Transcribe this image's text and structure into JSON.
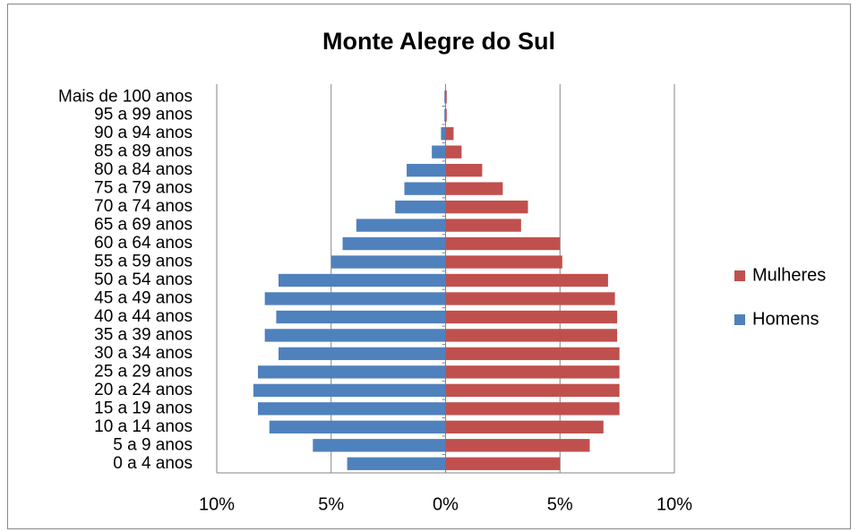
{
  "chart_data": {
    "type": "bar",
    "orientation": "horizontal",
    "stacked": true,
    "title": "Monte Alegre do Sul",
    "categories": [
      "0 a 4 anos",
      "5 a 9 anos",
      "10 a 14 anos",
      "15 a 19 anos",
      "20 a 24 anos",
      "25 a 29 anos",
      "30 a 34 anos",
      "35 a 39 anos",
      "40 a 44 anos",
      "45 a 49 anos",
      "50 a 54 anos",
      "55 a 59 anos",
      "60 a 64 anos",
      "65 a 69 anos",
      "70 a 74 anos",
      "75 a 79 anos",
      "80 a 84 anos",
      "85 a 89 anos",
      "90 a 94 anos",
      "95 a 99 anos",
      "Mais de 100 anos"
    ],
    "series": [
      {
        "name": "Mulheres",
        "color": "#c0504d",
        "values": [
          5.0,
          6.3,
          6.9,
          7.6,
          7.6,
          7.6,
          7.6,
          7.5,
          7.5,
          7.4,
          7.1,
          5.1,
          5.0,
          3.3,
          3.6,
          2.5,
          1.6,
          0.7,
          0.35,
          0.05,
          0.05
        ]
      },
      {
        "name": "Homens",
        "color": "#4f81bd",
        "values": [
          -4.3,
          -5.8,
          -7.7,
          -8.2,
          -8.4,
          -8.2,
          -7.3,
          -7.9,
          -7.4,
          -7.9,
          -7.3,
          -5.0,
          -4.5,
          -3.9,
          -2.2,
          -1.8,
          -1.7,
          -0.6,
          -0.2,
          -0.05,
          -0.05
        ]
      }
    ],
    "xlim": [
      -10,
      10
    ],
    "xticks": [
      {
        "value": -10,
        "label": "10%"
      },
      {
        "value": -5,
        "label": "5%"
      },
      {
        "value": 0,
        "label": "0%"
      },
      {
        "value": 5,
        "label": "5%"
      },
      {
        "value": 10,
        "label": "10%"
      }
    ],
    "grid": true,
    "legend": "right"
  }
}
